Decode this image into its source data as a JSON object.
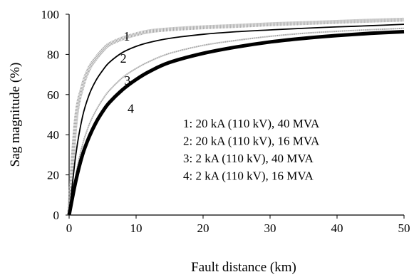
{
  "chart_data": {
    "type": "line",
    "title": "",
    "xlabel": "Fault distance (km)",
    "ylabel": "Sag magnitude (%)",
    "xlim": [
      0,
      50
    ],
    "ylim": [
      0,
      100
    ],
    "x_ticks": [
      0,
      10,
      20,
      30,
      40,
      50
    ],
    "y_ticks": [
      0,
      20,
      40,
      60,
      80,
      100
    ],
    "grid": false,
    "legend_position": "center-right",
    "series": [
      {
        "name": "1: 20 kA (110 kV), 40 MVA",
        "curve_label": "1",
        "color": "#a8a8a8",
        "style": "thick-gray",
        "x": [
          0,
          1,
          2,
          3,
          4,
          5,
          6,
          8,
          10,
          12,
          15,
          20,
          25,
          30,
          35,
          40,
          45,
          50
        ],
        "y": [
          0,
          47,
          64,
          73,
          78,
          82,
          85,
          88,
          90,
          91.5,
          92.5,
          93.5,
          94.2,
          95,
          95.6,
          96.2,
          96.8,
          97.3
        ]
      },
      {
        "name": "2: 20 kA (110 kV), 16 MVA",
        "curve_label": "2",
        "color": "#000000",
        "style": "thin-black",
        "x": [
          0,
          1,
          2,
          3,
          4,
          5,
          6,
          8,
          10,
          12,
          15,
          20,
          25,
          30,
          35,
          40,
          45,
          50
        ],
        "y": [
          0,
          30,
          49,
          60,
          67,
          72,
          76,
          81,
          84,
          86,
          88,
          90,
          91.3,
          92.2,
          93,
          93.7,
          94.3,
          95
        ]
      },
      {
        "name": "3: 2 kA (110 kV), 40 MVA",
        "curve_label": "3",
        "color": "#9a9a9a",
        "style": "thin-gray",
        "x": [
          0,
          1,
          2,
          3,
          4,
          5,
          6,
          8,
          10,
          12,
          15,
          20,
          25,
          30,
          35,
          40,
          45,
          50
        ],
        "y": [
          0,
          20,
          35,
          45,
          52,
          57.5,
          62,
          68.5,
          73,
          76.5,
          80.5,
          84.5,
          87,
          89,
          90.5,
          91.5,
          92.3,
          93
        ]
      },
      {
        "name": "4: 2 kA (110 kV), 16 MVA",
        "curve_label": "4",
        "color": "#000000",
        "style": "thick-black",
        "x": [
          0,
          1,
          2,
          3,
          4,
          5,
          6,
          8,
          10,
          12,
          15,
          20,
          25,
          30,
          35,
          40,
          45,
          50
        ],
        "y": [
          0,
          17,
          30,
          39,
          46,
          51.5,
          56,
          62.5,
          67.5,
          71.5,
          76,
          80.5,
          83.7,
          86.2,
          88,
          89.4,
          90.5,
          91.3
        ]
      }
    ]
  }
}
